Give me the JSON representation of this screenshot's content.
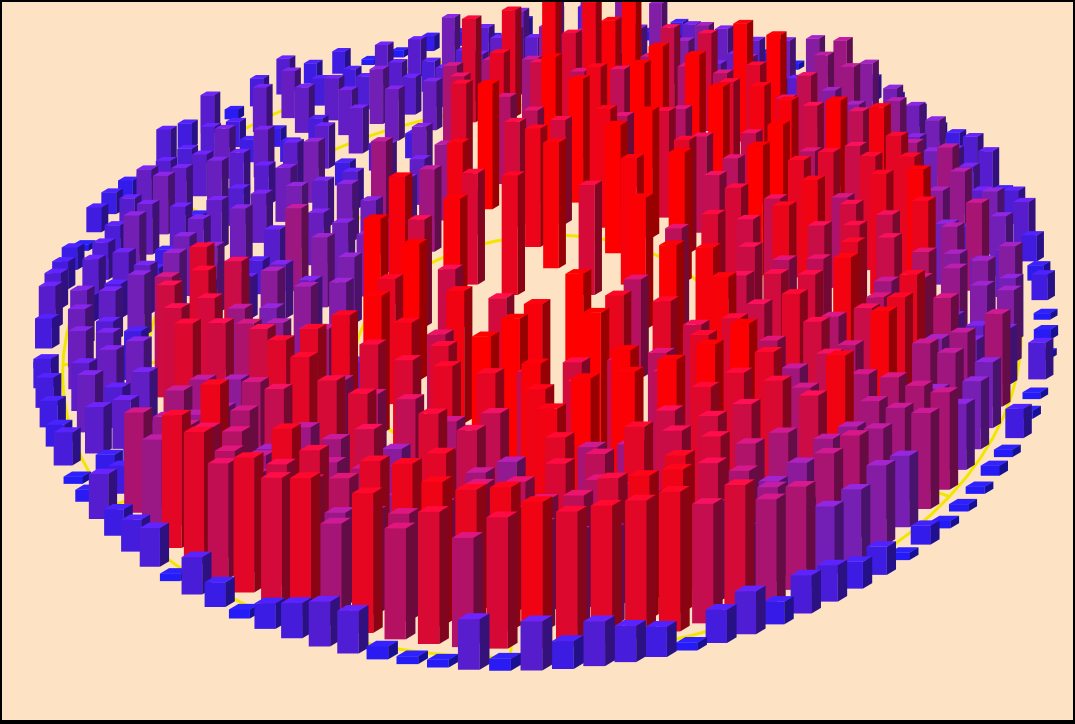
{
  "chart_data": {
    "type": "3d-radial-bar",
    "description_style": "3D circular treemap-like bar chart with rings split into sectors; bar height and color encode value (blue = low, red = high)",
    "color_scale": {
      "low": "#1a1aff",
      "mid": "#7a1fb0",
      "high": "#ff0000"
    },
    "outline_color": "#f2e600",
    "background_color": "#fde3c3",
    "rings": 5,
    "sector_boundaries_deg": [
      0,
      28,
      55,
      90,
      118,
      150,
      178,
      212,
      245,
      272,
      305,
      330
    ],
    "value_range": [
      0,
      1
    ],
    "regions": [
      {
        "ring": 0,
        "start_deg": 0,
        "end_deg": 360,
        "mean": 0.9
      },
      {
        "ring": 1,
        "start_deg": 0,
        "end_deg": 150,
        "mean": 0.85
      },
      {
        "ring": 1,
        "start_deg": 150,
        "end_deg": 245,
        "mean": 0.5
      },
      {
        "ring": 1,
        "start_deg": 245,
        "end_deg": 360,
        "mean": 0.88
      },
      {
        "ring": 2,
        "start_deg": 0,
        "end_deg": 90,
        "mean": 0.8
      },
      {
        "ring": 2,
        "start_deg": 90,
        "end_deg": 180,
        "mean": 0.72
      },
      {
        "ring": 2,
        "start_deg": 180,
        "end_deg": 250,
        "mean": 0.35
      },
      {
        "ring": 2,
        "start_deg": 250,
        "end_deg": 360,
        "mean": 0.82
      },
      {
        "ring": 3,
        "start_deg": 0,
        "end_deg": 60,
        "mean": 0.55
      },
      {
        "ring": 3,
        "start_deg": 60,
        "end_deg": 150,
        "mean": 0.78
      },
      {
        "ring": 3,
        "start_deg": 150,
        "end_deg": 260,
        "mean": 0.3
      },
      {
        "ring": 3,
        "start_deg": 260,
        "end_deg": 360,
        "mean": 0.5
      },
      {
        "ring": 4,
        "start_deg": 0,
        "end_deg": 360,
        "mean": 0.15
      }
    ]
  }
}
